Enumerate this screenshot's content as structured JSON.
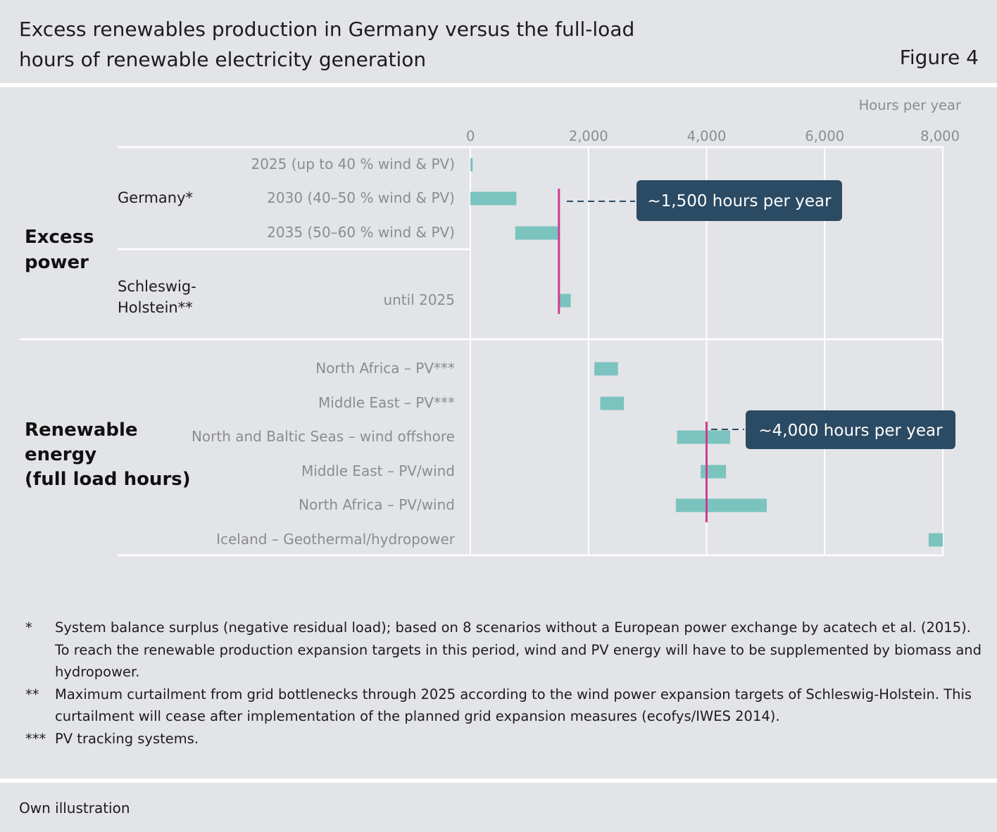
{
  "header": {
    "title": "Excess renewables production in Germany versus the full-load hours of renewable electricity generation",
    "figure_label": "Figure 4"
  },
  "chart_data": {
    "type": "bar",
    "subtype": "floating-range-horizontal",
    "xlabel": "Hours per year",
    "xlim": [
      0,
      8000
    ],
    "xticks": [
      0,
      2000,
      4000,
      6000,
      8000
    ],
    "xtick_labels": [
      "0",
      "2,000",
      "4,000",
      "6,000",
      "8,000"
    ],
    "grid": true,
    "bar_color": "#7bc3be",
    "groups": [
      {
        "label": "Excess power",
        "subgroups": [
          {
            "label": "Germany*"
          },
          {
            "label": "Schleswig-Holstein**"
          }
        ]
      },
      {
        "label": "Renewable energy (full load hours)"
      }
    ],
    "rows": [
      {
        "label": "2025 (up to 40 % wind & PV)",
        "subgroup": "Germany*",
        "min": 0,
        "max": 40
      },
      {
        "label": "2030 (40–50 % wind & PV)",
        "subgroup": "Germany*",
        "min": 0,
        "max": 780
      },
      {
        "label": "2035 (50–60 % wind & PV)",
        "subgroup": "Germany*",
        "min": 760,
        "max": 1520
      },
      {
        "label": "until 2025",
        "subgroup": "Schleswig-Holstein**",
        "min": 1500,
        "max": 1700
      },
      {
        "label": "North Africa – PV***",
        "min": 2100,
        "max": 2500
      },
      {
        "label": "Middle East – PV***",
        "min": 2200,
        "max": 2600
      },
      {
        "label": "North and Baltic Seas  – wind offshore",
        "min": 3500,
        "max": 4400
      },
      {
        "label": "Middle East – PV/wind",
        "min": 3900,
        "max": 4330
      },
      {
        "label": "North Africa – PV/wind",
        "min": 3480,
        "max": 5020
      },
      {
        "label": "Iceland – Geothermal/hydropower",
        "min": 7760,
        "max": 8000
      }
    ],
    "reference_lines": [
      {
        "value": 1500,
        "label": "~1,500 hours per year",
        "color": "#cc3d8f"
      },
      {
        "value": 4000,
        "label": "~4,000 hours per year",
        "color": "#cc3d8f"
      }
    ]
  },
  "notes": [
    {
      "mark": "*",
      "text": "System balance surplus (negative residual load); based on 8 scenarios without a European power exchange by acatech et al. (2015). To reach the renewable production expansion targets in this period, wind and PV energy will have to be supplemented by biomass and hydropower."
    },
    {
      "mark": "**",
      "text": "Maximum curtailment from grid bottlenecks through 2025 according to the wind power expansion targets of Schleswig-Holstein. This curtailment will cease after implementation of the planned grid expansion measures (ecofys/IWES 2014)."
    },
    {
      "mark": "***",
      "text": "PV tracking systems."
    }
  ],
  "footer": {
    "source": "Own illustration"
  },
  "colors": {
    "panel": "#e3e4e8",
    "bar": "#7bc3be",
    "reference": "#cc3d8f",
    "callout": "#2b4a63"
  }
}
